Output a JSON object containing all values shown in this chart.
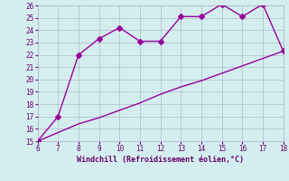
{
  "xlabel": "Windchill (Refroidissement éolien,°C)",
  "x_data": [
    6,
    7,
    8,
    9,
    10,
    11,
    12,
    13,
    14,
    15,
    16,
    17,
    18
  ],
  "y_data_line1": [
    15,
    17,
    22,
    23.3,
    24.2,
    23.1,
    23.1,
    25.1,
    25.1,
    26.1,
    25.1,
    26.1,
    22.3
  ],
  "y_data_line2": [
    15,
    15.7,
    16.4,
    16.9,
    17.5,
    18.1,
    18.8,
    19.4,
    19.9,
    20.5,
    21.1,
    21.7,
    22.3
  ],
  "line_color": "#990099",
  "bg_color": "#d4eef0",
  "grid_color": "#b0b8cc",
  "xlim": [
    6,
    18
  ],
  "ylim": [
    15,
    26
  ],
  "xticks": [
    6,
    7,
    8,
    9,
    10,
    11,
    12,
    13,
    14,
    15,
    16,
    17,
    18
  ],
  "yticks": [
    15,
    16,
    17,
    18,
    19,
    20,
    21,
    22,
    23,
    24,
    25,
    26
  ],
  "markersize": 3,
  "linewidth": 1.0
}
